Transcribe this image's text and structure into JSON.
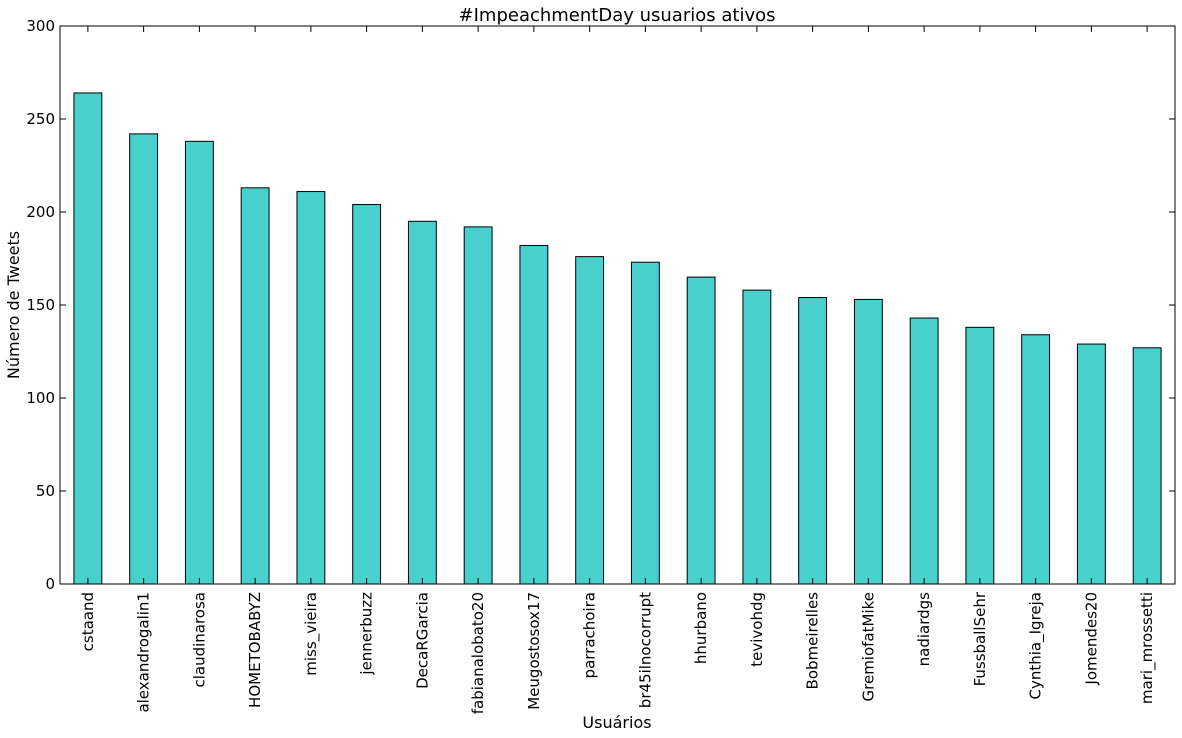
{
  "chart_data": {
    "type": "bar",
    "title": "#ImpeachmentDay usuarios ativos",
    "xlabel": "Usuários",
    "ylabel": "Número de Tweets",
    "ylim": [
      0,
      300
    ],
    "yticks": [
      0,
      50,
      100,
      150,
      200,
      250,
      300
    ],
    "grid": false,
    "bar_color": "#48d1cc",
    "categories": [
      "cstaand",
      "alexandrogalin1",
      "claudinarosa",
      "HOMETOBABYZ",
      "miss_vieira",
      "jennerbuzz",
      "DecaRGarcia",
      "fabianalobato20",
      "Meugostosox17",
      "parrachoira",
      "br45ilnocorrupt",
      "hhurbano",
      "tevivohdg",
      "Bobmeirelles",
      "GremiofatMike",
      "nadiardgs",
      "FussballSehr",
      "Cynthia_Igreja",
      "Jomendes20",
      "mari_mrossetti"
    ],
    "values": [
      264,
      242,
      238,
      213,
      211,
      204,
      195,
      192,
      182,
      176,
      173,
      165,
      158,
      154,
      153,
      143,
      138,
      134,
      129,
      127
    ]
  }
}
